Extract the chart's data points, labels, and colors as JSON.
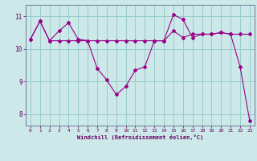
{
  "xlabel": "Windchill (Refroidissement éolien,°C)",
  "background_color": "#cce8e8",
  "line_color": "#990088",
  "grid_color": "#99cccc",
  "xlim": [
    -0.5,
    23.5
  ],
  "ylim": [
    7.65,
    11.35
  ],
  "yticks": [
    8,
    9,
    10,
    11
  ],
  "xticks": [
    0,
    1,
    2,
    3,
    4,
    5,
    6,
    7,
    8,
    9,
    10,
    11,
    12,
    13,
    14,
    15,
    16,
    17,
    18,
    19,
    20,
    21,
    22,
    23
  ],
  "line1_x": [
    0,
    1,
    2,
    3,
    4,
    5,
    6,
    7,
    8,
    9,
    10,
    11,
    12,
    13,
    14,
    15,
    16,
    17,
    18,
    19,
    20,
    21,
    22,
    23
  ],
  "line1_y": [
    10.3,
    10.85,
    10.25,
    10.55,
    10.8,
    10.3,
    10.25,
    9.4,
    9.05,
    8.6,
    8.85,
    9.35,
    9.45,
    10.25,
    10.25,
    11.05,
    10.9,
    10.35,
    10.45,
    10.45,
    10.5,
    10.45,
    9.45,
    7.8
  ],
  "line2_x": [
    0,
    1,
    2,
    3,
    4,
    5,
    6,
    7,
    8,
    9,
    10,
    11,
    12,
    13,
    14,
    15,
    16,
    17,
    18,
    19,
    20,
    21,
    22,
    23
  ],
  "line2_y": [
    10.3,
    10.85,
    10.25,
    10.25,
    10.25,
    10.25,
    10.25,
    10.25,
    10.25,
    10.25,
    10.25,
    10.25,
    10.25,
    10.25,
    10.25,
    10.55,
    10.35,
    10.45,
    10.45,
    10.45,
    10.5,
    10.45,
    10.45,
    10.45
  ]
}
